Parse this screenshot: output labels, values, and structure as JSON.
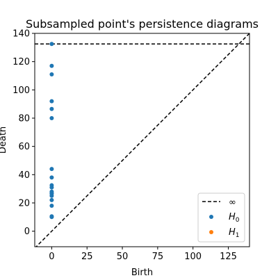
{
  "chart_data": {
    "type": "scatter",
    "title": "Subsampled point's persistence diagrams",
    "xlabel": "Birth",
    "ylabel": "Death",
    "xlim": [
      -12,
      140
    ],
    "ylim": [
      -11,
      140
    ],
    "xticks": [
      0,
      25,
      50,
      75,
      100,
      125
    ],
    "yticks": [
      0,
      20,
      40,
      60,
      80,
      100,
      120,
      140
    ],
    "grid": false,
    "legend_position": "bottom-right",
    "infinity_death": 132.5,
    "diagonal": true,
    "series": [
      {
        "name": "H_0",
        "color": "#1f77b4",
        "x": [
          0,
          0,
          0,
          0,
          0,
          0,
          0,
          0,
          0,
          0,
          0,
          0,
          0,
          0,
          0,
          0,
          0,
          0
        ],
        "y": [
          132.5,
          117,
          111,
          92,
          86.5,
          80,
          44,
          38,
          32.5,
          31,
          28,
          26.5,
          25,
          22,
          18,
          10,
          10.5,
          27
        ]
      },
      {
        "name": "H_1",
        "color": "#ff7f0e",
        "x": [],
        "y": []
      }
    ],
    "legend": {
      "infinity_label": "∞",
      "h0_label_main": "H",
      "h0_label_sub": "0",
      "h1_label_main": "H",
      "h1_label_sub": "1"
    }
  }
}
